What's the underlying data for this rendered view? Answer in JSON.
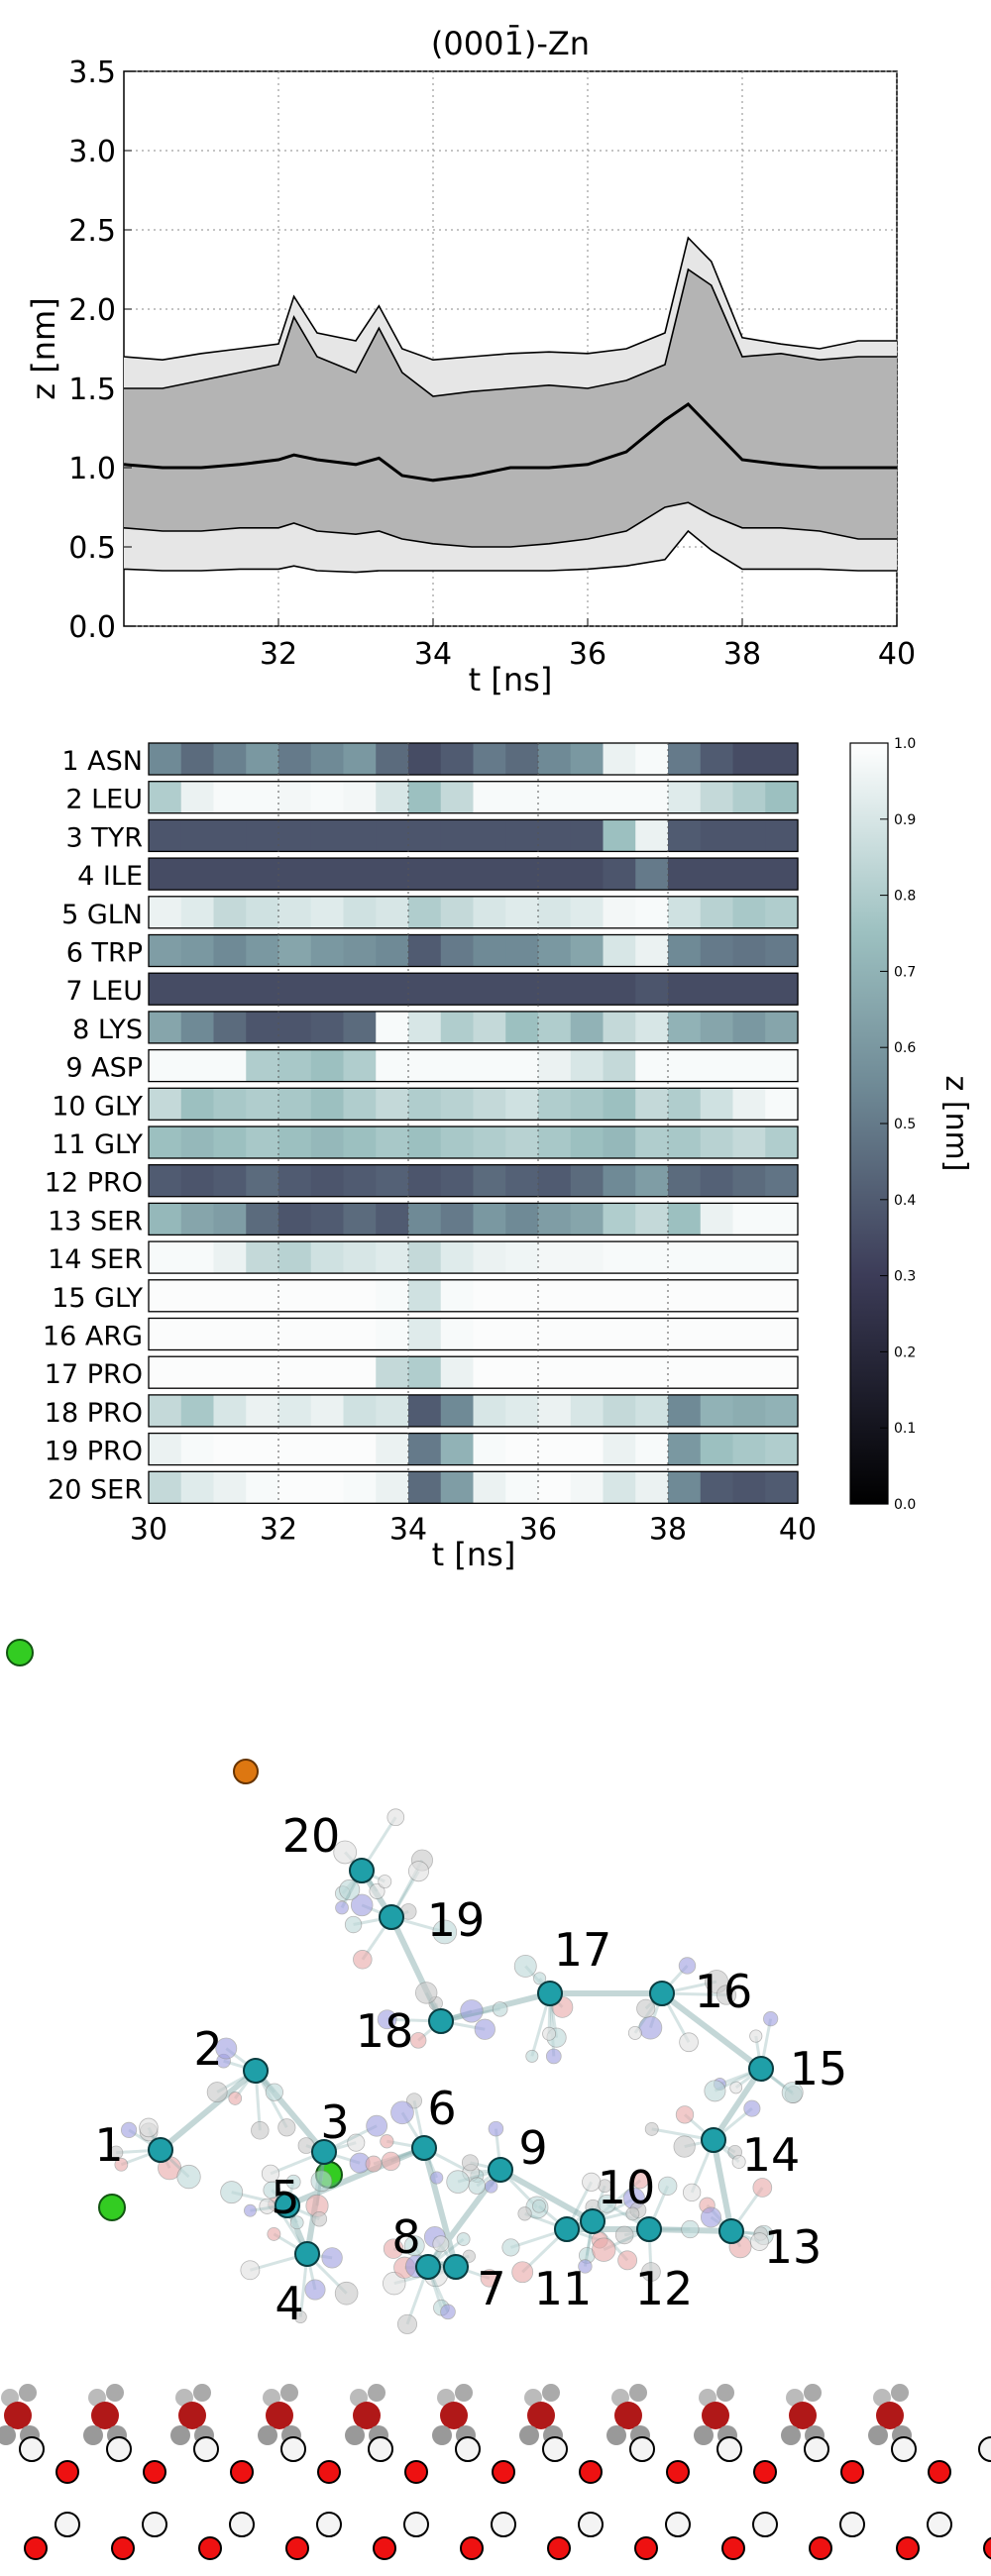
{
  "chart_data": [
    {
      "type": "area",
      "title": "(0001̄)-Zn",
      "xlabel": "t [ns]",
      "ylabel": "z [nm]",
      "xlim": [
        30,
        40
      ],
      "ylim": [
        0.0,
        3.5
      ],
      "xticks": [
        32,
        34,
        36,
        38,
        40
      ],
      "xtick_labels": [
        "32",
        "34",
        "36",
        "38",
        "40"
      ],
      "yticks": [
        0.0,
        0.5,
        1.0,
        1.5,
        2.0,
        2.5,
        3.0,
        3.5
      ],
      "ytick_labels": [
        "0.0",
        "0.5",
        "1.0",
        "1.5",
        "2.0",
        "2.5",
        "3.0",
        "3.5"
      ],
      "grid": true,
      "x": [
        30,
        30.5,
        31,
        31.5,
        32,
        32.2,
        32.5,
        33,
        33.3,
        33.6,
        34,
        34.5,
        35,
        35.5,
        36,
        36.5,
        37,
        37.3,
        37.6,
        38,
        38.5,
        39,
        39.5,
        40
      ],
      "series": [
        {
          "name": "max",
          "values": [
            1.7,
            1.68,
            1.72,
            1.75,
            1.78,
            2.08,
            1.85,
            1.8,
            2.02,
            1.75,
            1.68,
            1.7,
            1.72,
            1.73,
            1.72,
            1.75,
            1.85,
            2.45,
            2.3,
            1.82,
            1.78,
            1.75,
            1.8,
            1.8
          ]
        },
        {
          "name": "upper",
          "values": [
            1.5,
            1.5,
            1.55,
            1.6,
            1.65,
            1.95,
            1.7,
            1.6,
            1.88,
            1.6,
            1.45,
            1.48,
            1.5,
            1.52,
            1.5,
            1.55,
            1.65,
            2.25,
            2.15,
            1.7,
            1.72,
            1.68,
            1.7,
            1.7
          ]
        },
        {
          "name": "mean",
          "values": [
            1.02,
            1.0,
            1.0,
            1.02,
            1.05,
            1.08,
            1.05,
            1.02,
            1.06,
            0.95,
            0.92,
            0.95,
            1.0,
            1.0,
            1.02,
            1.1,
            1.3,
            1.4,
            1.25,
            1.05,
            1.02,
            1.0,
            1.0,
            1.0
          ]
        },
        {
          "name": "lower",
          "values": [
            0.62,
            0.6,
            0.6,
            0.62,
            0.62,
            0.65,
            0.6,
            0.58,
            0.6,
            0.55,
            0.52,
            0.5,
            0.5,
            0.52,
            0.55,
            0.6,
            0.75,
            0.78,
            0.7,
            0.62,
            0.62,
            0.6,
            0.55,
            0.55
          ]
        },
        {
          "name": "min",
          "values": [
            0.36,
            0.35,
            0.35,
            0.36,
            0.36,
            0.38,
            0.35,
            0.34,
            0.35,
            0.35,
            0.35,
            0.35,
            0.35,
            0.35,
            0.36,
            0.38,
            0.42,
            0.6,
            0.48,
            0.36,
            0.36,
            0.36,
            0.35,
            0.35
          ]
        }
      ]
    },
    {
      "type": "heatmap",
      "xlabel": "t [ns]",
      "xlim": [
        30,
        40
      ],
      "xticks": [
        30,
        32,
        34,
        36,
        38,
        40
      ],
      "xtick_labels": [
        "30",
        "32",
        "34",
        "36",
        "38",
        "40"
      ],
      "colorbar_label": "z [nm]",
      "colorbar_range": [
        0.0,
        1.0
      ],
      "colorbar_ticks": [
        "0.0",
        "0.1",
        "0.2",
        "0.3",
        "0.4",
        "0.5",
        "0.6",
        "0.7",
        "0.8",
        "0.9",
        "1.0"
      ],
      "segment_times": [
        30,
        30.5,
        31,
        31.5,
        32,
        32.5,
        33,
        33.5,
        34,
        34.5,
        35,
        35.5,
        36,
        36.5,
        37,
        37.5,
        38,
        38.5,
        39,
        39.5
      ],
      "rows": [
        {
          "label": "1 ASN",
          "values": [
            0.55,
            0.45,
            0.52,
            0.6,
            0.5,
            0.55,
            0.6,
            0.45,
            0.35,
            0.4,
            0.5,
            0.45,
            0.55,
            0.6,
            0.95,
            0.98,
            0.5,
            0.4,
            0.35,
            0.35
          ]
        },
        {
          "label": "2 LEU",
          "values": [
            0.8,
            0.95,
            0.98,
            0.98,
            0.97,
            0.98,
            0.97,
            0.9,
            0.75,
            0.85,
            0.98,
            0.98,
            0.98,
            0.98,
            0.98,
            0.98,
            0.92,
            0.85,
            0.8,
            0.75
          ]
        },
        {
          "label": "3 TYR",
          "values": [
            0.38,
            0.38,
            0.38,
            0.38,
            0.38,
            0.38,
            0.38,
            0.38,
            0.38,
            0.38,
            0.38,
            0.38,
            0.38,
            0.38,
            0.75,
            0.95,
            0.4,
            0.38,
            0.38,
            0.38
          ]
        },
        {
          "label": "4 ILE",
          "values": [
            0.35,
            0.35,
            0.35,
            0.35,
            0.35,
            0.35,
            0.35,
            0.35,
            0.35,
            0.35,
            0.35,
            0.35,
            0.35,
            0.35,
            0.38,
            0.5,
            0.35,
            0.35,
            0.35,
            0.35
          ]
        },
        {
          "label": "5 GLN",
          "values": [
            0.95,
            0.92,
            0.85,
            0.88,
            0.9,
            0.92,
            0.88,
            0.9,
            0.8,
            0.85,
            0.9,
            0.92,
            0.9,
            0.92,
            0.97,
            0.98,
            0.88,
            0.82,
            0.78,
            0.8
          ]
        },
        {
          "label": "6 TRP",
          "values": [
            0.62,
            0.6,
            0.55,
            0.6,
            0.65,
            0.6,
            0.58,
            0.55,
            0.4,
            0.5,
            0.55,
            0.55,
            0.6,
            0.65,
            0.9,
            0.95,
            0.55,
            0.5,
            0.48,
            0.5
          ]
        },
        {
          "label": "7 LEU",
          "values": [
            0.35,
            0.35,
            0.35,
            0.35,
            0.35,
            0.35,
            0.35,
            0.35,
            0.35,
            0.35,
            0.35,
            0.35,
            0.35,
            0.35,
            0.35,
            0.38,
            0.35,
            0.35,
            0.35,
            0.35
          ]
        },
        {
          "label": "8 LYS",
          "values": [
            0.65,
            0.55,
            0.45,
            0.38,
            0.38,
            0.4,
            0.45,
            0.98,
            0.9,
            0.8,
            0.85,
            0.75,
            0.8,
            0.7,
            0.85,
            0.9,
            0.7,
            0.65,
            0.6,
            0.65
          ]
        },
        {
          "label": "9 ASP",
          "values": [
            0.98,
            0.98,
            0.98,
            0.8,
            0.78,
            0.75,
            0.8,
            0.98,
            0.98,
            0.98,
            0.98,
            0.98,
            0.95,
            0.9,
            0.85,
            0.98,
            0.98,
            0.98,
            0.98,
            0.98
          ]
        },
        {
          "label": "10 GLY",
          "values": [
            0.85,
            0.75,
            0.78,
            0.8,
            0.78,
            0.75,
            0.8,
            0.85,
            0.8,
            0.82,
            0.85,
            0.88,
            0.8,
            0.78,
            0.75,
            0.85,
            0.8,
            0.88,
            0.95,
            0.98
          ]
        },
        {
          "label": "11 GLY",
          "values": [
            0.75,
            0.72,
            0.75,
            0.78,
            0.75,
            0.72,
            0.75,
            0.78,
            0.75,
            0.78,
            0.8,
            0.82,
            0.78,
            0.75,
            0.72,
            0.8,
            0.78,
            0.82,
            0.85,
            0.8
          ]
        },
        {
          "label": "12 PRO",
          "values": [
            0.4,
            0.38,
            0.4,
            0.45,
            0.4,
            0.38,
            0.4,
            0.42,
            0.38,
            0.4,
            0.45,
            0.42,
            0.4,
            0.45,
            0.55,
            0.62,
            0.45,
            0.42,
            0.45,
            0.48
          ]
        },
        {
          "label": "13 SER",
          "values": [
            0.72,
            0.65,
            0.62,
            0.45,
            0.38,
            0.4,
            0.45,
            0.4,
            0.55,
            0.5,
            0.6,
            0.55,
            0.62,
            0.65,
            0.8,
            0.85,
            0.75,
            0.95,
            0.98,
            0.98
          ]
        },
        {
          "label": "14 SER",
          "values": [
            0.98,
            0.98,
            0.95,
            0.85,
            0.82,
            0.88,
            0.9,
            0.92,
            0.85,
            0.92,
            0.95,
            0.96,
            0.97,
            0.97,
            0.98,
            0.98,
            0.98,
            0.98,
            0.98,
            0.98
          ]
        },
        {
          "label": "15 GLY",
          "values": [
            0.99,
            0.99,
            0.99,
            0.99,
            0.99,
            0.99,
            0.99,
            0.98,
            0.88,
            0.98,
            0.99,
            0.99,
            0.99,
            0.99,
            0.99,
            0.99,
            0.99,
            0.99,
            0.99,
            0.99
          ]
        },
        {
          "label": "16 ARG",
          "values": [
            0.99,
            0.99,
            0.99,
            0.99,
            0.99,
            0.99,
            0.99,
            0.98,
            0.92,
            0.98,
            0.99,
            0.99,
            0.99,
            0.99,
            0.99,
            0.99,
            0.99,
            0.99,
            0.99,
            0.99
          ]
        },
        {
          "label": "17 PRO",
          "values": [
            0.99,
            0.99,
            0.99,
            0.99,
            0.99,
            0.99,
            0.99,
            0.85,
            0.8,
            0.95,
            0.99,
            0.99,
            0.99,
            0.99,
            0.99,
            0.99,
            0.99,
            0.99,
            0.99,
            0.99
          ]
        },
        {
          "label": "18 PRO",
          "values": [
            0.85,
            0.78,
            0.9,
            0.95,
            0.92,
            0.95,
            0.88,
            0.9,
            0.4,
            0.55,
            0.9,
            0.92,
            0.95,
            0.9,
            0.85,
            0.88,
            0.55,
            0.7,
            0.68,
            0.7
          ]
        },
        {
          "label": "19 PRO",
          "values": [
            0.95,
            0.98,
            0.99,
            0.99,
            0.99,
            0.99,
            0.99,
            0.95,
            0.5,
            0.7,
            0.98,
            0.99,
            0.99,
            0.99,
            0.95,
            0.98,
            0.6,
            0.75,
            0.78,
            0.8
          ]
        },
        {
          "label": "20 SER",
          "values": [
            0.85,
            0.92,
            0.95,
            0.98,
            0.99,
            0.99,
            0.98,
            0.95,
            0.45,
            0.62,
            0.95,
            0.98,
            0.99,
            0.97,
            0.9,
            0.95,
            0.55,
            0.4,
            0.38,
            0.4
          ]
        }
      ]
    },
    {
      "type": "diagram",
      "residue_labels": [
        "1",
        "2",
        "3",
        "4",
        "5",
        "6",
        "7",
        "8",
        "9",
        "10",
        "11",
        "12",
        "13",
        "14",
        "15",
        "16",
        "17",
        "18",
        "19",
        "20"
      ]
    }
  ]
}
